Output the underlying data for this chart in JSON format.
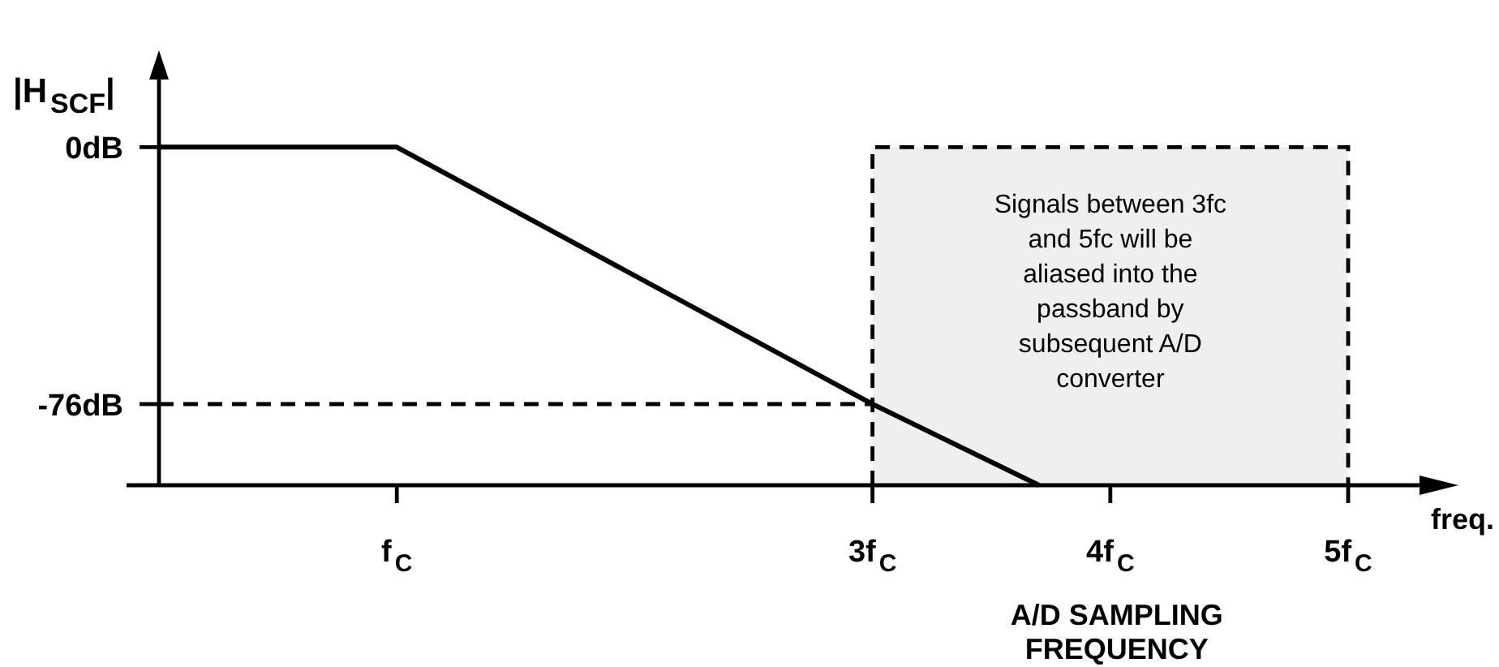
{
  "chart_data": {
    "type": "line",
    "xlabel": "freq.",
    "ylabel": "|H$_{SCF}$|",
    "series": [
      {
        "x": [
          0,
          1,
          3,
          3.7
        ],
        "values": [
          0,
          0,
          -76,
          -100
        ],
        "color": "#000000"
      }
    ],
    "xlim": [
      0,
      5.3
    ],
    "ylim": [
      -100,
      20
    ],
    "xticks": [
      {
        "value": 1,
        "label": "f$_{C}$"
      },
      {
        "value": 3,
        "label": "3f$_{C}$"
      },
      {
        "value": 4,
        "label": "4f$_{C}$"
      },
      {
        "value": 5,
        "label": "5f$_{C}$"
      }
    ],
    "yticks": [
      {
        "value": 0,
        "label": "0dB"
      },
      {
        "value": -76,
        "label": "-76dB"
      }
    ],
    "ref_lines": [
      {
        "axis": "y",
        "value": -76,
        "line_style": "dashed"
      }
    ],
    "bands": [
      {
        "axis": "x",
        "from": 3,
        "to": 5,
        "label": "Signals between 3fc and 5fc will be aliased into the passband by subsequent A/D converter",
        "color": "#efefef"
      }
    ],
    "annotations": [
      "A/D SAMPLING FREQUENCY"
    ]
  }
}
